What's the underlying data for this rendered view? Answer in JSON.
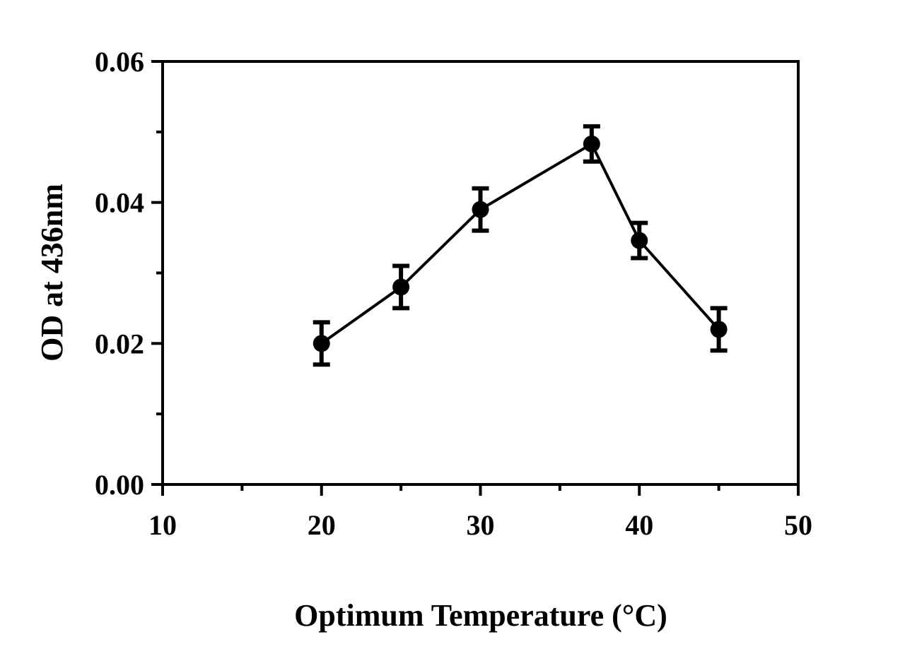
{
  "chart_data": {
    "type": "line",
    "title": "",
    "xlabel": "Optimum Temperature (°C)",
    "ylabel": "OD at 436nm",
    "xlim": [
      10,
      50
    ],
    "ylim": [
      0,
      0.06
    ],
    "x_ticks": [
      10,
      20,
      30,
      40,
      50
    ],
    "x_tick_labels": [
      "10",
      "20",
      "30",
      "40",
      "50"
    ],
    "x_minor_ticks": [
      15,
      25,
      35,
      45
    ],
    "y_ticks": [
      0,
      0.02,
      0.04,
      0.06
    ],
    "y_tick_labels": [
      "0.00",
      "0.02",
      "0.04",
      "0.06"
    ],
    "y_minor_ticks": [
      0.01,
      0.03,
      0.05
    ],
    "grid": false,
    "legend": "none",
    "color": "#000000",
    "series": [
      {
        "x": [
          20,
          25,
          30,
          37,
          40,
          45
        ],
        "y": [
          0.02,
          0.028,
          0.039,
          0.0483,
          0.0346,
          0.022
        ],
        "error": [
          0.003,
          0.003,
          0.003,
          0.0025,
          0.0025,
          0.003
        ]
      }
    ]
  }
}
